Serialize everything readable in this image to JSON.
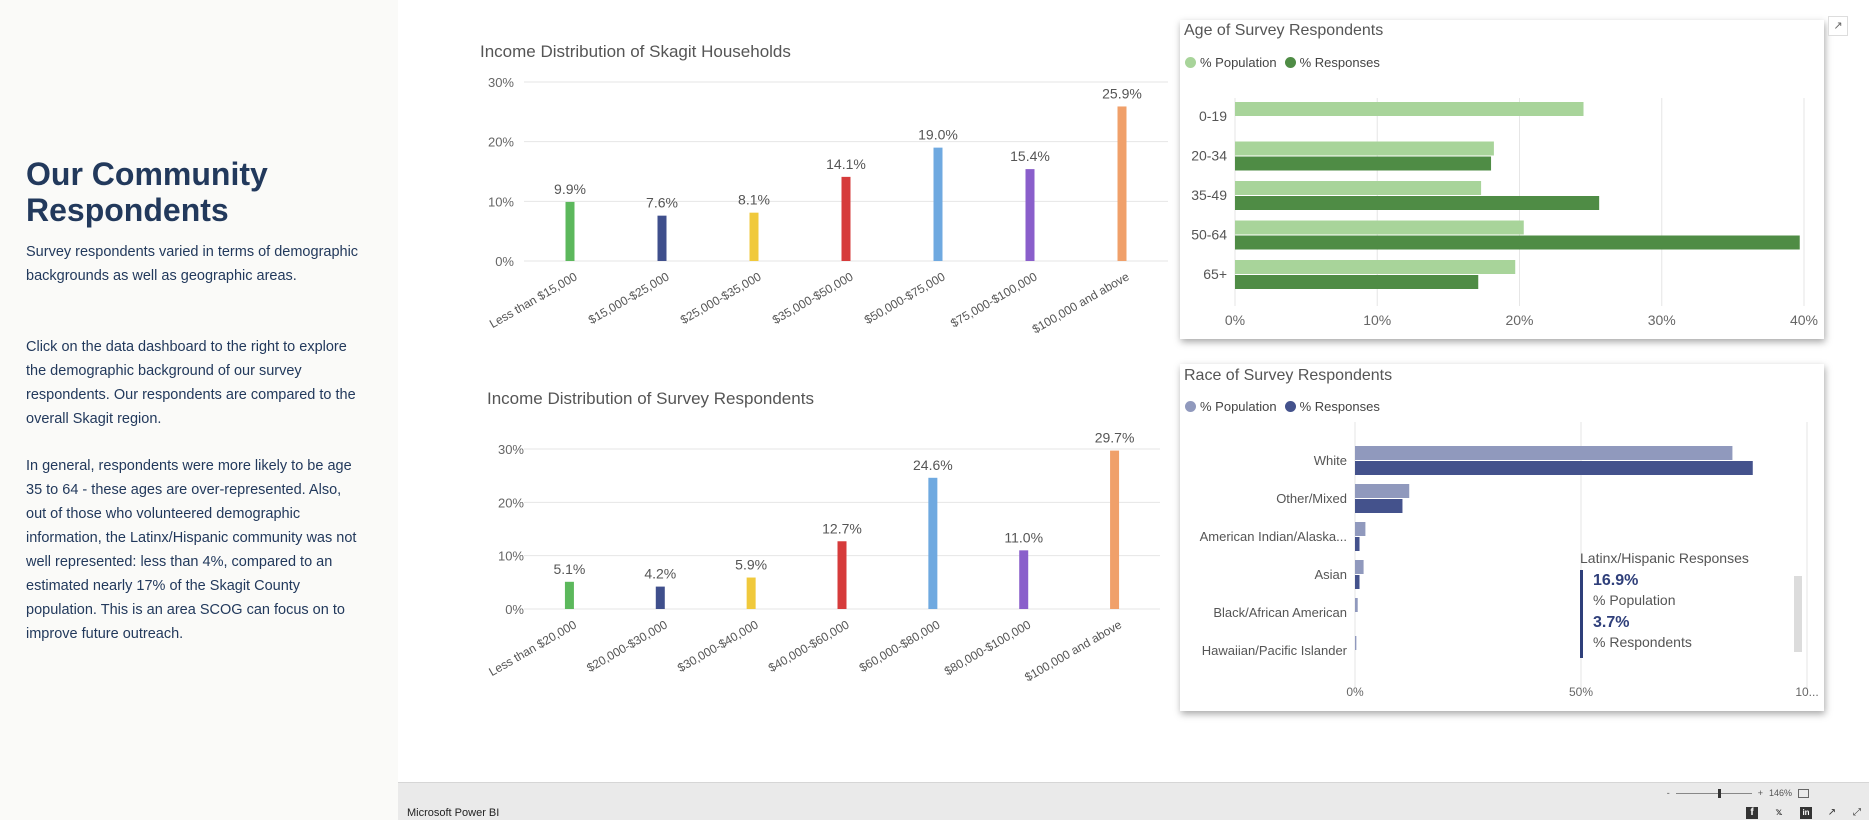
{
  "sidebar": {
    "title": "Our Community Respondents",
    "p1": "Survey respondents varied in terms of demographic backgrounds as well as geographic areas.",
    "p2": "Click on the data dashboard to the right to explore the demographic background of our survey respondents. Our respondents are compared to the overall Skagit region.",
    "p3": "In general, respondents were more likely to be age 35 to 64 - these ages are over-represented. Also, out of those who volunteered demographic information, the Latinx/Hispanic community was not well represented: less than 4%, compared to an estimated nearly 17% of the Skagit County population. This is an area SCOG can focus on to improve future outreach."
  },
  "chart_data": [
    {
      "type": "bar",
      "title": "Income Distribution of Skagit Households",
      "categories": [
        "Less than $15,000",
        "$15,000-$25,000",
        "$25,000-$35,000",
        "$35,000-$50,000",
        "$50,000-$75,000",
        "$75,000-$100,000",
        "$100,000 and above"
      ],
      "values": [
        9.9,
        7.6,
        8.1,
        14.1,
        19.0,
        15.4,
        25.9
      ],
      "labels": [
        "9.9%",
        "7.6%",
        "8.1%",
        "14.1%",
        "19.0%",
        "15.4%",
        "25.9%"
      ],
      "colors": [
        "#5cb85c",
        "#3f4f8c",
        "#f0c93c",
        "#d63b3b",
        "#6fa9e0",
        "#8a5fcb",
        "#f0a06a"
      ],
      "yticks": [
        "0%",
        "10%",
        "20%",
        "30%"
      ],
      "ylim": [
        0,
        30
      ]
    },
    {
      "type": "bar",
      "title": "Income Distribution of Survey Respondents",
      "categories": [
        "Less than $20,000",
        "$20,000-$30,000",
        "$30,000-$40,000",
        "$40,000-$60,000",
        "$60,000-$80,000",
        "$80,000-$100,000",
        "$100,000 and above"
      ],
      "values": [
        5.1,
        4.2,
        5.9,
        12.7,
        24.6,
        11.0,
        29.7
      ],
      "labels": [
        "5.1%",
        "4.2%",
        "5.9%",
        "12.7%",
        "24.6%",
        "11.0%",
        "29.7%"
      ],
      "colors": [
        "#5cb85c",
        "#3f4f8c",
        "#f0c93c",
        "#d63b3b",
        "#6fa9e0",
        "#8a5fcb",
        "#f0a06a"
      ],
      "yticks": [
        "0%",
        "10%",
        "20%",
        "30%"
      ],
      "ylim": [
        0,
        30
      ]
    },
    {
      "type": "bar",
      "orientation": "horizontal",
      "title": "Age of Survey Respondents",
      "categories": [
        "0-19",
        "20-34",
        "35-49",
        "50-64",
        "65+"
      ],
      "series": [
        {
          "name": "% Population",
          "color": "#a8d49a",
          "values": [
            24.5,
            18.2,
            17.3,
            20.3,
            19.7
          ]
        },
        {
          "name": "% Responses",
          "color": "#4f8c45",
          "values": [
            0,
            18.0,
            25.6,
            39.7,
            17.1
          ]
        }
      ],
      "xticks": [
        "0%",
        "10%",
        "20%",
        "30%",
        "40%"
      ],
      "xlim": [
        0,
        40
      ]
    },
    {
      "type": "bar",
      "orientation": "horizontal",
      "title": "Race of Survey Respondents",
      "categories": [
        "White",
        "Other/Mixed",
        "American Indian/Alaska...",
        "Asian",
        "Black/African American",
        "Hawaiian/Pacific Islander"
      ],
      "series": [
        {
          "name": "% Population",
          "color": "#9099bd",
          "values": [
            83.5,
            12.0,
            2.3,
            1.9,
            0.6,
            0.3
          ]
        },
        {
          "name": "% Responses",
          "color": "#44528c",
          "values": [
            88.0,
            10.5,
            1.0,
            1.0,
            0,
            0
          ]
        }
      ],
      "xticks": [
        "0%",
        "50%",
        "10..."
      ],
      "xlim": [
        0,
        100
      ]
    }
  ],
  "age_legend": {
    "pop": "% Population",
    "resp": "% Responses",
    "pop_color": "#a8d49a",
    "resp_color": "#4f8c45"
  },
  "race_legend": {
    "pop": "% Population",
    "resp": "% Responses",
    "pop_color": "#9099bd",
    "resp_color": "#44528c"
  },
  "latinx_card": {
    "title": "Latinx/Hispanic Responses",
    "pop_value": "16.9%",
    "pop_label": "% Population",
    "resp_value": "3.7%",
    "resp_label": "% Respondents"
  },
  "footer": {
    "brand": "Microsoft Power BI",
    "zoom_minus": "-",
    "zoom_plus": "+",
    "zoom_level": "146%"
  }
}
